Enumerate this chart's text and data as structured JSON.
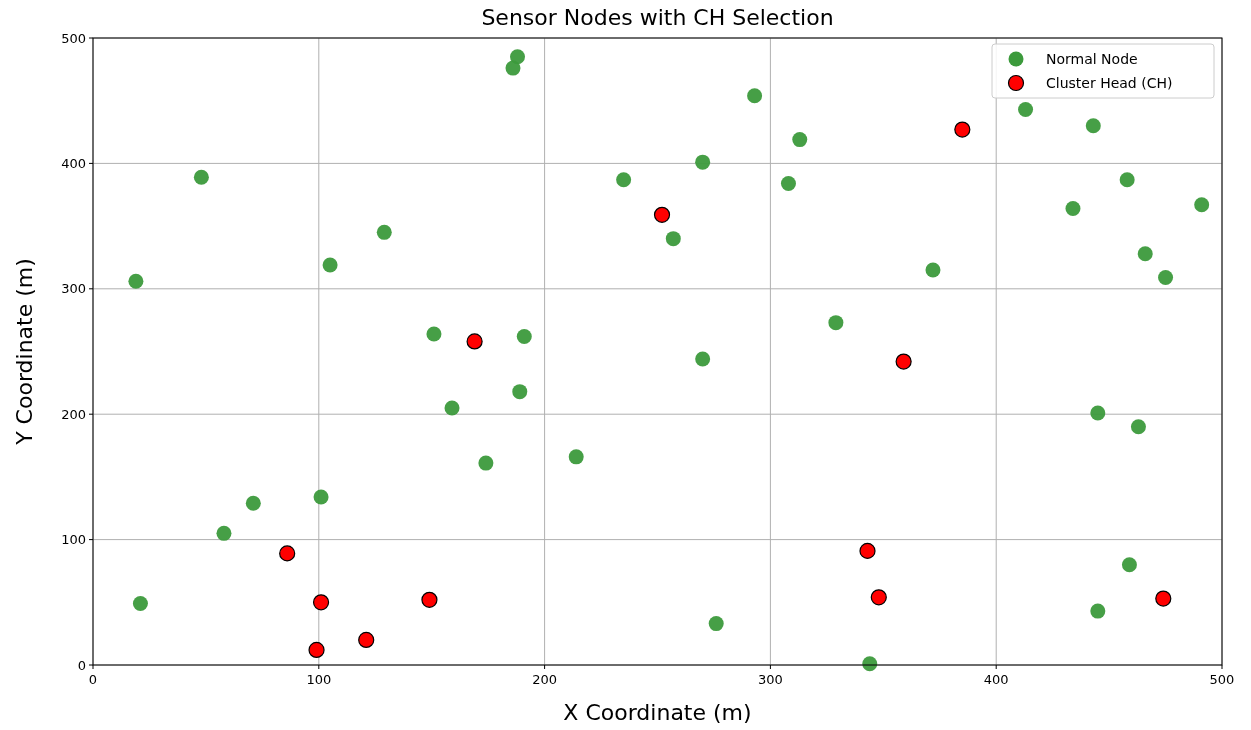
{
  "chart_data": {
    "type": "scatter",
    "title": "Sensor Nodes with CH Selection",
    "xlabel": "X Coordinate (m)",
    "ylabel": "Y Coordinate (m)",
    "xlim": [
      0,
      500
    ],
    "ylim": [
      0,
      500
    ],
    "xticks": [
      0,
      100,
      200,
      300,
      400,
      500
    ],
    "yticks": [
      0,
      100,
      200,
      300,
      400,
      500
    ],
    "grid": true,
    "legend": "top right",
    "marker": "circle",
    "series": [
      {
        "name": "Normal Node",
        "color": "#3c9a3c",
        "x": [
          188,
          186,
          293,
          313,
          270,
          308,
          235,
          48,
          413,
          443,
          458,
          434,
          491,
          466,
          475,
          372,
          257,
          129,
          105,
          19,
          151,
          191,
          329,
          270,
          159,
          189,
          445,
          463,
          174,
          214,
          71,
          101,
          58,
          21,
          276,
          344,
          459,
          445
        ],
        "values": [
          485,
          476,
          454,
          419,
          401,
          384,
          387,
          389,
          443,
          430,
          387,
          364,
          367,
          328,
          309,
          315,
          340,
          345,
          319,
          306,
          264,
          262,
          273,
          244,
          205,
          218,
          201,
          190,
          161,
          166,
          129,
          134,
          105,
          49,
          33,
          1,
          80,
          43
        ]
      },
      {
        "name": "Cluster Head (CH)",
        "color": "#ff0000",
        "x": [
          252,
          169,
          385,
          359,
          86,
          101,
          149,
          121,
          99,
          343,
          348,
          474
        ],
        "values": [
          359,
          258,
          427,
          242,
          89,
          50,
          52,
          20,
          12,
          91,
          54,
          53
        ]
      }
    ]
  }
}
